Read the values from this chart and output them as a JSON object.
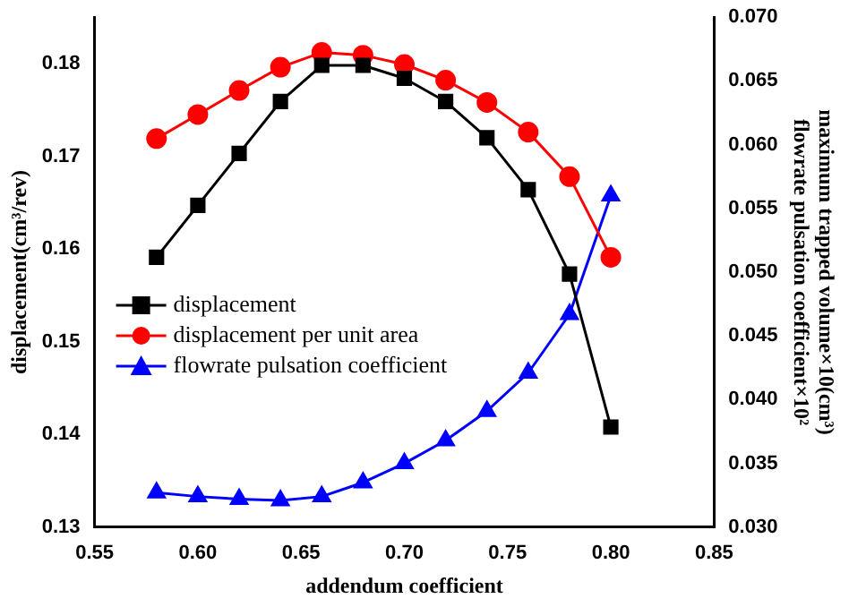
{
  "chart_data": {
    "type": "line",
    "xlabel": "addendum coefficient",
    "ylabel": "displacement(cm³/rev)",
    "y2label": "maximum trapped volume×10(cm³)\nflowrate pulsation coefficient×10²",
    "x": [
      0.58,
      0.6,
      0.62,
      0.64,
      0.66,
      0.68,
      0.7,
      0.72,
      0.74,
      0.76,
      0.78,
      0.8
    ],
    "series": [
      {
        "name": "displacement",
        "color": "#000000",
        "marker": "square",
        "values": [
          0.1591,
          0.1647,
          0.1703,
          0.1759,
          0.1798,
          0.1798,
          0.1784,
          0.1759,
          0.172,
          0.1664,
          0.1573,
          0.1408
        ]
      },
      {
        "name": "displacement per unit area",
        "color": "#ff0000",
        "marker": "circle",
        "values": [
          0.1719,
          0.1745,
          0.1771,
          0.1796,
          0.1812,
          0.1809,
          0.1799,
          0.1782,
          0.1758,
          0.1726,
          0.1678,
          0.1591
        ]
      },
      {
        "name": "flowrate pulsation coefficient",
        "color": "#0000ff",
        "marker": "triangle",
        "axis": "y2",
        "values": [
          0.0327,
          0.0324,
          0.0322,
          0.0321,
          0.0324,
          0.0335,
          0.035,
          0.0368,
          0.0391,
          0.0421,
          0.0467,
          0.056
        ]
      }
    ],
    "xlim": [
      0.55,
      0.85
    ],
    "xticks": [
      0.55,
      {
        "value": 0.6,
        "label": "0.60"
      },
      0.65,
      {
        "value": 0.7,
        "label": "0.70"
      },
      0.75,
      {
        "value": 0.8,
        "label": "0.80"
      },
      0.85
    ],
    "ylim": [
      0.13,
      0.185
    ],
    "yticks": [
      0.13,
      0.14,
      0.15,
      0.16,
      0.17,
      0.18
    ],
    "y2lim": [
      0.03,
      0.07
    ],
    "y2ticks": [
      {
        "value": 0.03,
        "label": "0.030"
      },
      0.035,
      {
        "value": 0.04,
        "label": "0.040"
      },
      0.045,
      {
        "value": 0.05,
        "label": "0.050"
      },
      0.055,
      {
        "value": 0.06,
        "label": "0.060"
      },
      0.065,
      {
        "value": 0.07,
        "label": "0.070"
      }
    ],
    "grid": false,
    "legend": "left",
    "line_style": "solid"
  }
}
